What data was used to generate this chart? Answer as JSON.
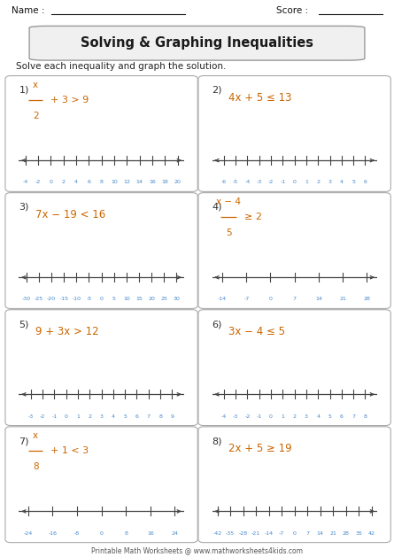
{
  "title": "Solving & Graphing Inequalities",
  "name_label": "Name :",
  "score_label": "Score :",
  "instruction": "Solve each inequality and graph the solution.",
  "footer": "Printable Math Worksheets @ www.mathworksheets4kids.com",
  "problems": [
    {
      "num": "1)",
      "fraction": true,
      "num_top": "x",
      "num_bot": "2",
      "rest": "+ 3 > 9",
      "ticks": [
        -4,
        -2,
        0,
        2,
        4,
        6,
        8,
        10,
        12,
        14,
        16,
        18,
        20
      ],
      "tick_labels": [
        "-4",
        "-2",
        "0",
        "2",
        "4",
        "6",
        "8",
        "10",
        "12",
        "14",
        "16",
        "18",
        "20"
      ],
      "xlim": [
        -5,
        21
      ]
    },
    {
      "num": "2)",
      "fraction": false,
      "expr": "4x + 5 ≤ 13",
      "ticks": [
        -6,
        -5,
        -4,
        -3,
        -2,
        -1,
        0,
        1,
        2,
        3,
        4,
        5,
        6
      ],
      "tick_labels": [
        "-6",
        "-5",
        "-4",
        "-3",
        "-2",
        "-1",
        "0",
        "1",
        "2",
        "3",
        "4",
        "5",
        "6"
      ],
      "xlim": [
        -7,
        7
      ]
    },
    {
      "num": "3)",
      "fraction": false,
      "expr": "7x − 19 < 16",
      "ticks": [
        -30,
        -25,
        -20,
        -15,
        -10,
        -5,
        0,
        5,
        10,
        15,
        20,
        25,
        30
      ],
      "tick_labels": [
        "-30",
        "-25",
        "-20",
        "-15",
        "-10",
        "-5",
        "0",
        "5",
        "10",
        "15",
        "20",
        "25",
        "30"
      ],
      "xlim": [
        -33,
        33
      ]
    },
    {
      "num": "4)",
      "fraction": true,
      "num_top": "x − 4",
      "num_bot": "5",
      "rest": "≥ 2",
      "ticks": [
        -14,
        -7,
        0,
        7,
        14,
        21,
        28
      ],
      "tick_labels": [
        "-14",
        "-7",
        "0",
        "7",
        "14",
        "21",
        "28"
      ],
      "xlim": [
        -17,
        31
      ]
    },
    {
      "num": "5)",
      "fraction": false,
      "expr": "9 + 3x > 12",
      "ticks": [
        -3,
        -2,
        -1,
        0,
        1,
        2,
        3,
        4,
        5,
        6,
        7,
        8,
        9
      ],
      "tick_labels": [
        "-3",
        "-2",
        "-1",
        "0",
        "1",
        "2",
        "3",
        "4",
        "5",
        "6",
        "7",
        "8",
        "9"
      ],
      "xlim": [
        -4,
        10
      ]
    },
    {
      "num": "6)",
      "fraction": false,
      "expr": "3x − 4 ≤ 5",
      "ticks": [
        -4,
        -3,
        -2,
        -1,
        0,
        1,
        2,
        3,
        4,
        5,
        6,
        7,
        8
      ],
      "tick_labels": [
        "-4",
        "-3",
        "-2",
        "-1",
        "0",
        "1",
        "2",
        "3",
        "4",
        "5",
        "6",
        "7",
        "8"
      ],
      "xlim": [
        -5,
        9
      ]
    },
    {
      "num": "7)",
      "fraction": true,
      "num_top": "x",
      "num_bot": "8",
      "rest": "+ 1 < 3",
      "ticks": [
        -24,
        -16,
        -8,
        0,
        8,
        16,
        24
      ],
      "tick_labels": [
        "-24",
        "-16",
        "-8",
        "0",
        "8",
        "16",
        "24"
      ],
      "xlim": [
        -27,
        27
      ]
    },
    {
      "num": "8)",
      "fraction": false,
      "expr": "2x + 5 ≥ 19",
      "ticks": [
        -42,
        -35,
        -28,
        -21,
        -14,
        -7,
        0,
        7,
        14,
        21,
        28,
        35,
        42
      ],
      "tick_labels": [
        "-42",
        "-35",
        "-28",
        "-21",
        "-14",
        "-7",
        "0",
        "7",
        "14",
        "21",
        "28",
        "35",
        "42"
      ],
      "xlim": [
        -45,
        45
      ]
    }
  ],
  "bg_color": "#ffffff",
  "title_color": "#1a1a1a",
  "problem_num_color": "#333333",
  "expr_color": "#cc6600",
  "axis_color": "#444444",
  "tick_color": "#4488cc",
  "instruction_color": "#222222"
}
